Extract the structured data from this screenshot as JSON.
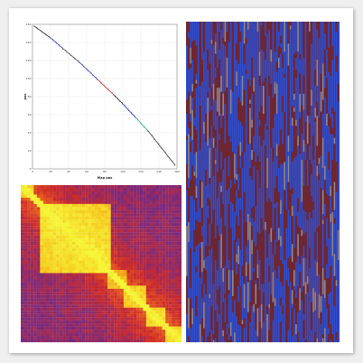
{
  "page": {
    "background": "#ffffff",
    "frame_shadow": "#999999"
  },
  "chart_data": [
    {
      "type": "line",
      "xlabel": "Map pos",
      "ylabel": "pos",
      "grid": true,
      "xlim": [
        0,
        160
      ],
      "ylim": [
        0,
        160
      ],
      "x_ticks": [
        "0",
        "20",
        "40",
        "60",
        "80",
        "100",
        "120",
        "140",
        "160"
      ],
      "y_ticks": [
        "0",
        "20",
        "40",
        "60",
        "80",
        "100",
        "120",
        "140",
        "160"
      ],
      "series": [
        {
          "color": "#3a3a3a",
          "x": [
            2,
            20
          ],
          "y": [
            158,
            145
          ]
        },
        {
          "color": "#2233cc",
          "x": [
            20,
            34
          ],
          "y": [
            145,
            133
          ]
        },
        {
          "color": "#3a3a3a",
          "x": [
            34,
            52
          ],
          "y": [
            133,
            118
          ]
        },
        {
          "color": "#2233cc",
          "x": [
            52,
            72
          ],
          "y": [
            118,
            99
          ]
        },
        {
          "color": "#cc2222",
          "x": [
            72,
            90
          ],
          "y": [
            99,
            82
          ]
        },
        {
          "color": "#3a3a3a",
          "x": [
            90,
            100
          ],
          "y": [
            82,
            72
          ]
        },
        {
          "color": "#2233cc",
          "x": [
            100,
            114
          ],
          "y": [
            72,
            57
          ]
        },
        {
          "color": "#22aa88",
          "x": [
            114,
            128
          ],
          "y": [
            57,
            42
          ]
        },
        {
          "color": "#3a3a3a",
          "x": [
            128,
            158
          ],
          "y": [
            42,
            4
          ]
        }
      ]
    },
    {
      "type": "heatmap",
      "colorscale": [
        "#6b2a8c",
        "#cc2a2a",
        "#ee6a1a",
        "#f5c21a",
        "#f5f535"
      ],
      "blocks": [
        {
          "start": 0.0,
          "end": 0.07,
          "value": 0.85
        },
        {
          "start": 0.12,
          "end": 0.55,
          "value": 0.95
        },
        {
          "start": 0.55,
          "end": 0.65,
          "value": 0.75
        },
        {
          "start": 0.65,
          "end": 0.78,
          "value": 0.85
        },
        {
          "start": 0.78,
          "end": 0.9,
          "value": 0.9
        },
        {
          "start": 0.9,
          "end": 1.0,
          "value": 0.9
        }
      ]
    },
    {
      "type": "heatmap",
      "colors": [
        "#2a4fd6",
        "#6e2630",
        "#8a8a98"
      ],
      "columns": 80
    }
  ]
}
